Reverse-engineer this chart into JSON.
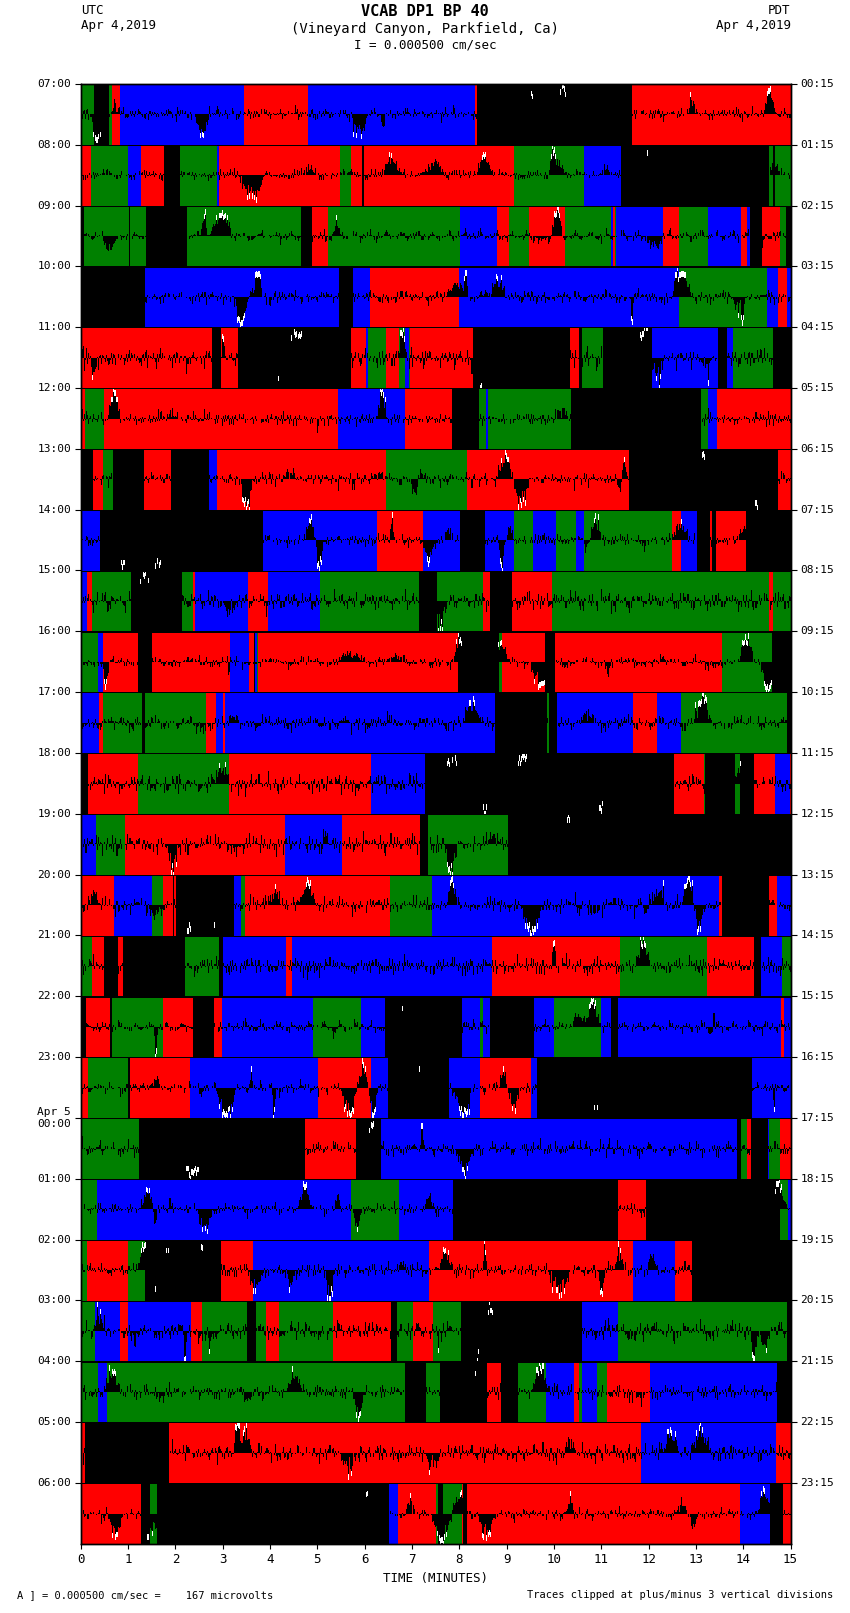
{
  "title_line1": "VCAB DP1 BP 40",
  "title_line2": "(Vineyard Canyon, Parkfield, Ca)",
  "scale_text": "I = 0.000500 cm/sec",
  "utc_label": "UTC",
  "utc_date": "Apr 4,2019",
  "pdt_label": "PDT",
  "pdt_date": "Apr 4,2019",
  "xlabel": "TIME (MINUTES)",
  "footer_left": "A ] = 0.000500 cm/sec =    167 microvolts",
  "footer_right": "Traces clipped at plus/minus 3 vertical divisions",
  "left_yticks": [
    "07:00",
    "08:00",
    "09:00",
    "10:00",
    "11:00",
    "12:00",
    "13:00",
    "14:00",
    "15:00",
    "16:00",
    "17:00",
    "18:00",
    "19:00",
    "20:00",
    "21:00",
    "22:00",
    "23:00",
    "Apr 5\n00:00",
    "01:00",
    "02:00",
    "03:00",
    "04:00",
    "05:00",
    "06:00"
  ],
  "right_yticks": [
    "00:15",
    "01:15",
    "02:15",
    "03:15",
    "04:15",
    "05:15",
    "06:15",
    "07:15",
    "08:15",
    "09:15",
    "10:15",
    "11:15",
    "12:15",
    "13:15",
    "14:15",
    "15:15",
    "16:15",
    "17:15",
    "18:15",
    "19:15",
    "20:15",
    "21:15",
    "22:15",
    "23:15"
  ],
  "xmin": 0,
  "xmax": 15,
  "xticks": [
    0,
    1,
    2,
    3,
    4,
    5,
    6,
    7,
    8,
    9,
    10,
    11,
    12,
    13,
    14,
    15
  ],
  "n_traces": 24,
  "fig_bg": "#ffffff",
  "ax_bg": "#000000",
  "colors": [
    "#ff0000",
    "#0000ff",
    "#008000",
    "#000000"
  ],
  "font_family": "monospace",
  "title_fontsize": 11,
  "subtitle_fontsize": 10,
  "tick_fontsize": 8,
  "label_fontsize": 9
}
